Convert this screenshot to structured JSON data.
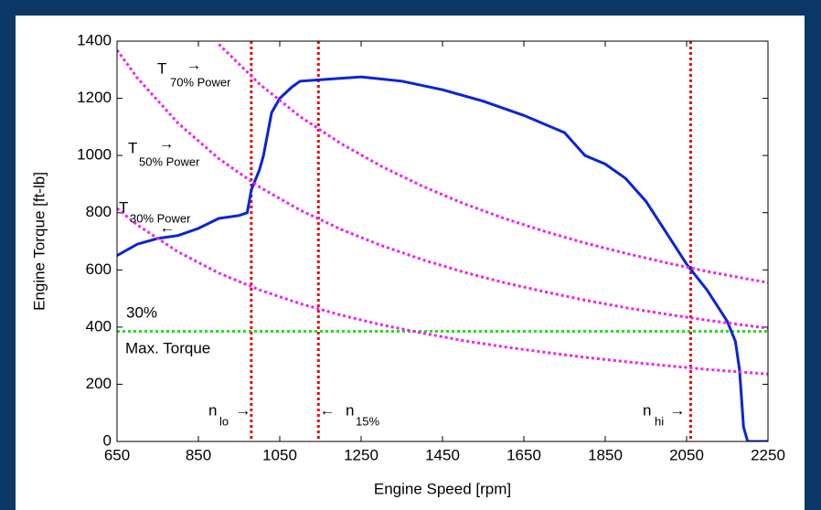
{
  "chart_data": {
    "type": "line",
    "xlabel": "Engine Speed [rpm]",
    "ylabel": "Engine Torque [ft-lb]",
    "xlim": [
      650,
      2250
    ],
    "ylim": [
      0,
      1400
    ],
    "xticks": [
      650,
      850,
      1050,
      1250,
      1450,
      1650,
      1850,
      2050,
      2250
    ],
    "yticks": [
      0,
      200,
      400,
      600,
      800,
      1000,
      1200,
      1400
    ],
    "grid": false,
    "series": [
      {
        "color": "#0a24d6",
        "dash": false,
        "x": [
          650,
          700,
          750,
          800,
          850,
          900,
          950,
          970,
          980,
          1000,
          1010,
          1030,
          1050,
          1080,
          1100,
          1150,
          1250,
          1350,
          1450,
          1550,
          1650,
          1750,
          1800,
          1850,
          1900,
          1950,
          2000,
          2050,
          2100,
          2150,
          2170,
          2180,
          2190,
          2200,
          2250
        ],
        "values": [
          650,
          690,
          710,
          720,
          745,
          780,
          790,
          800,
          880,
          950,
          1000,
          1150,
          1200,
          1240,
          1260,
          1265,
          1275,
          1260,
          1230,
          1190,
          1140,
          1080,
          1000,
          970,
          920,
          840,
          730,
          620,
          530,
          420,
          350,
          250,
          50,
          0,
          0
        ]
      },
      {
        "color": "#ee22ee",
        "dash": true,
        "x": [
          900,
          1000,
          1100,
          1200,
          1300,
          1400,
          1500,
          1600,
          1700,
          1800,
          1900,
          2000,
          2100,
          2200,
          2250
        ],
        "values": [
          1389,
          1250,
          1136,
          1042,
          962,
          893,
          833,
          781,
          735,
          694,
          658,
          625,
          595,
          568,
          556
        ]
      },
      {
        "color": "#ee22ee",
        "dash": true,
        "x": [
          650,
          700,
          800,
          900,
          1000,
          1100,
          1200,
          1300,
          1400,
          1500,
          1600,
          1700,
          1800,
          1900,
          2000,
          2100,
          2200,
          2250
        ],
        "values": [
          1369,
          1271,
          1113,
          989,
          890,
          809,
          742,
          685,
          636,
          593,
          556,
          524,
          494,
          468,
          445,
          424,
          405,
          396
        ]
      },
      {
        "color": "#ee22ee",
        "dash": true,
        "x": [
          650,
          700,
          800,
          900,
          1000,
          1100,
          1200,
          1300,
          1400,
          1500,
          1600,
          1700,
          1800,
          1900,
          2000,
          2100,
          2200,
          2250
        ],
        "values": [
          815,
          757,
          663,
          589,
          530,
          482,
          442,
          408,
          379,
          353,
          331,
          312,
          294,
          279,
          265,
          252,
          241,
          236
        ]
      }
    ],
    "vlines": [
      {
        "value": 980,
        "color": "#e01010"
      },
      {
        "value": 1145,
        "color": "#e01010"
      },
      {
        "value": 2060,
        "color": "#e01010"
      }
    ],
    "hline": {
      "value": 385,
      "color": "#22dd22"
    },
    "annotations": [
      {
        "text": "T",
        "sub": "70% Power",
        "arrow": "→"
      },
      {
        "text": "T",
        "sub": "50% Power",
        "arrow": "→"
      },
      {
        "text": "T",
        "sub": "30% Power",
        "arrow": "←"
      },
      {
        "text": "30%"
      },
      {
        "text": "Max. Torque"
      },
      {
        "text": "n",
        "sub": "lo",
        "arrow": "→"
      },
      {
        "text": "n",
        "sub": "15%",
        "arrow": "←"
      },
      {
        "text": "n",
        "sub": "hi",
        "arrow": "→"
      }
    ]
  }
}
